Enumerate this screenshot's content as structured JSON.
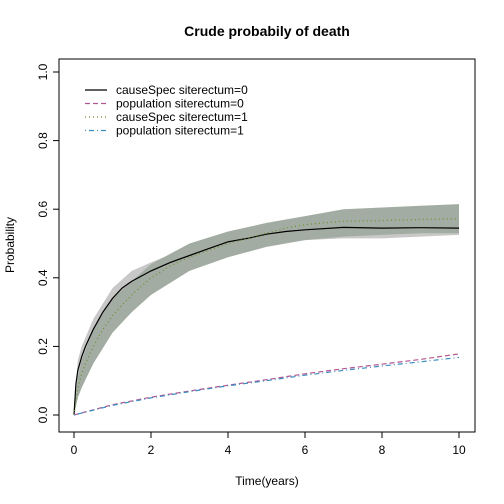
{
  "chart_data": {
    "type": "line",
    "title": "Crude probabily of death",
    "xlabel": "Time(years)",
    "ylabel": "Probability",
    "xlim": [
      0,
      10
    ],
    "ylim": [
      0,
      1
    ],
    "x_ticks": [
      0,
      2,
      4,
      6,
      8,
      10
    ],
    "y_ticks": [
      0.0,
      0.2,
      0.4,
      0.6,
      0.8,
      1.0
    ],
    "x_tick_labels": [
      "0",
      "2",
      "4",
      "6",
      "8",
      "10"
    ],
    "y_tick_labels": [
      "0.0",
      "0.2",
      "0.4",
      "0.6",
      "0.8",
      "1.0"
    ],
    "grid": false,
    "legend_position": "top-left",
    "series": [
      {
        "name": "causeSpec siterectum=0",
        "color": "#000000",
        "dash": "solid",
        "x": [
          0,
          0.05,
          0.1,
          0.2,
          0.3,
          0.5,
          0.75,
          1,
          1.25,
          1.5,
          2,
          2.5,
          3,
          3.5,
          4,
          4.5,
          5,
          5.5,
          6,
          7,
          8,
          9,
          10
        ],
        "y": [
          0,
          0.09,
          0.13,
          0.17,
          0.2,
          0.25,
          0.3,
          0.34,
          0.37,
          0.39,
          0.42,
          0.445,
          0.465,
          0.485,
          0.505,
          0.515,
          0.527,
          0.535,
          0.54,
          0.547,
          0.545,
          0.546,
          0.545
        ]
      },
      {
        "name": "population siterectum=0",
        "color": "#b3558f",
        "dash": "dashed",
        "x": [
          0,
          1,
          2,
          3,
          4,
          5,
          6,
          7,
          8,
          9,
          10
        ],
        "y": [
          0,
          0.03,
          0.052,
          0.07,
          0.087,
          0.103,
          0.12,
          0.135,
          0.148,
          0.162,
          0.178
        ]
      },
      {
        "name": "causeSpec siterectum=1",
        "color": "#6b8e23",
        "dash": "dotted",
        "x": [
          0,
          0.1,
          0.2,
          0.3,
          0.5,
          0.75,
          1,
          1.25,
          1.5,
          2,
          2.5,
          3,
          3.5,
          4,
          4.5,
          5,
          5.5,
          6,
          7,
          8,
          9,
          10
        ],
        "y": [
          0,
          0.08,
          0.12,
          0.15,
          0.2,
          0.25,
          0.29,
          0.32,
          0.35,
          0.4,
          0.435,
          0.46,
          0.48,
          0.5,
          0.515,
          0.53,
          0.545,
          0.555,
          0.565,
          0.567,
          0.57,
          0.572
        ]
      },
      {
        "name": "population siterectum=1",
        "color": "#3a8fc2",
        "dash": "dotdash",
        "x": [
          0,
          1,
          2,
          3,
          4,
          5,
          6,
          7,
          8,
          9,
          10
        ],
        "y": [
          0,
          0.028,
          0.05,
          0.068,
          0.085,
          0.1,
          0.116,
          0.13,
          0.143,
          0.155,
          0.168
        ]
      }
    ],
    "bands": [
      {
        "name": "ci causeSpec siterectum=0",
        "color": "#c8c8c8",
        "x": [
          0,
          0.1,
          0.2,
          0.5,
          1,
          1.5,
          2,
          3,
          4,
          5,
          6,
          7,
          8,
          9,
          10
        ],
        "lower": [
          0,
          0.1,
          0.14,
          0.22,
          0.31,
          0.36,
          0.395,
          0.44,
          0.48,
          0.5,
          0.51,
          0.515,
          0.515,
          0.52,
          0.525
        ],
        "upper": [
          0,
          0.16,
          0.2,
          0.28,
          0.37,
          0.42,
          0.445,
          0.49,
          0.525,
          0.55,
          0.565,
          0.575,
          0.575,
          0.575,
          0.575
        ]
      },
      {
        "name": "ci causeSpec siterectum=1",
        "color": "#a3aca3",
        "x": [
          0,
          0.1,
          0.2,
          0.5,
          1,
          1.5,
          2,
          3,
          4,
          5,
          6,
          7,
          8,
          9,
          10
        ],
        "lower": [
          0,
          0.05,
          0.08,
          0.15,
          0.24,
          0.3,
          0.35,
          0.42,
          0.46,
          0.49,
          0.51,
          0.52,
          0.525,
          0.53,
          0.53
        ],
        "upper": [
          0,
          0.11,
          0.16,
          0.25,
          0.34,
          0.39,
          0.44,
          0.5,
          0.535,
          0.56,
          0.58,
          0.6,
          0.605,
          0.61,
          0.615
        ]
      }
    ]
  }
}
